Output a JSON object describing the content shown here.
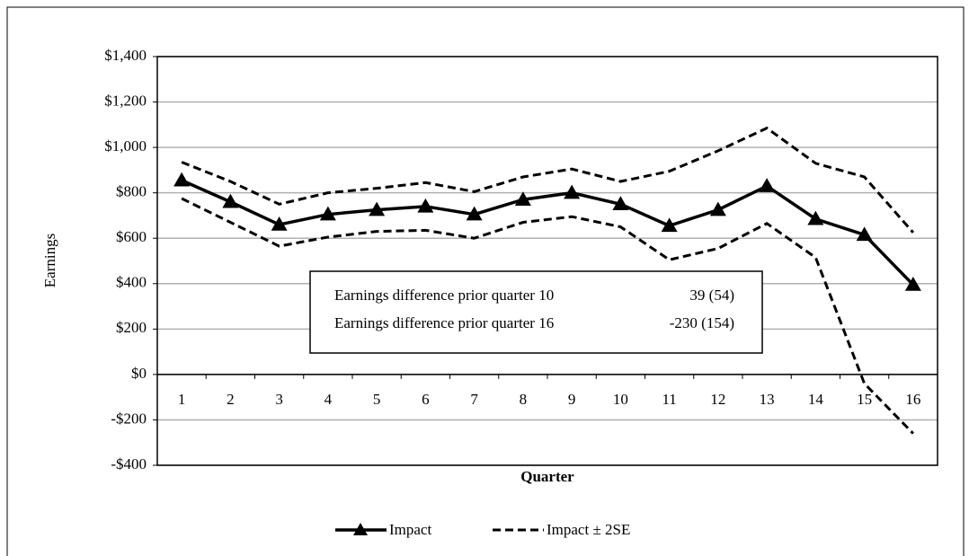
{
  "chart_data": {
    "type": "line",
    "x_label": "Quarter",
    "y_label": "Earnings",
    "categories": [
      "1",
      "2",
      "3",
      "4",
      "5",
      "6",
      "7",
      "8",
      "9",
      "10",
      "11",
      "12",
      "13",
      "14",
      "15",
      "16"
    ],
    "series": [
      {
        "name": "Impact",
        "color": "#000000",
        "values": [
          855,
          760,
          660,
          705,
          725,
          740,
          705,
          770,
          800,
          750,
          655,
          725,
          830,
          685,
          615,
          395
        ]
      },
      {
        "name": "Impact ± 2SE",
        "color": "#000000",
        "upper": [
          935,
          850,
          750,
          800,
          820,
          845,
          805,
          870,
          905,
          850,
          895,
          985,
          1085,
          930,
          870,
          625
        ],
        "lower": [
          775,
          670,
          565,
          605,
          630,
          635,
          600,
          670,
          695,
          650,
          505,
          555,
          665,
          515,
          -40,
          -260
        ]
      }
    ],
    "ylim": [
      -400,
      1400
    ],
    "yticks": [
      {
        "value": -400,
        "label": "-$400"
      },
      {
        "value": -200,
        "label": "-$200"
      },
      {
        "value": 0,
        "label": "$0"
      },
      {
        "value": 200,
        "label": "$200"
      },
      {
        "value": 400,
        "label": "$400"
      },
      {
        "value": 600,
        "label": "$600"
      },
      {
        "value": 800,
        "label": "$800"
      },
      {
        "value": 1000,
        "label": "$1,000"
      },
      {
        "value": 1200,
        "label": "$1,200"
      },
      {
        "value": 1400,
        "label": "$1,400"
      }
    ],
    "grid": true,
    "legend": "bottom",
    "annotation": [
      [
        "Earnings difference prior quarter 10",
        "39 (54)"
      ],
      [
        "Earnings difference prior quarter 16",
        "-230 (154)"
      ]
    ]
  }
}
